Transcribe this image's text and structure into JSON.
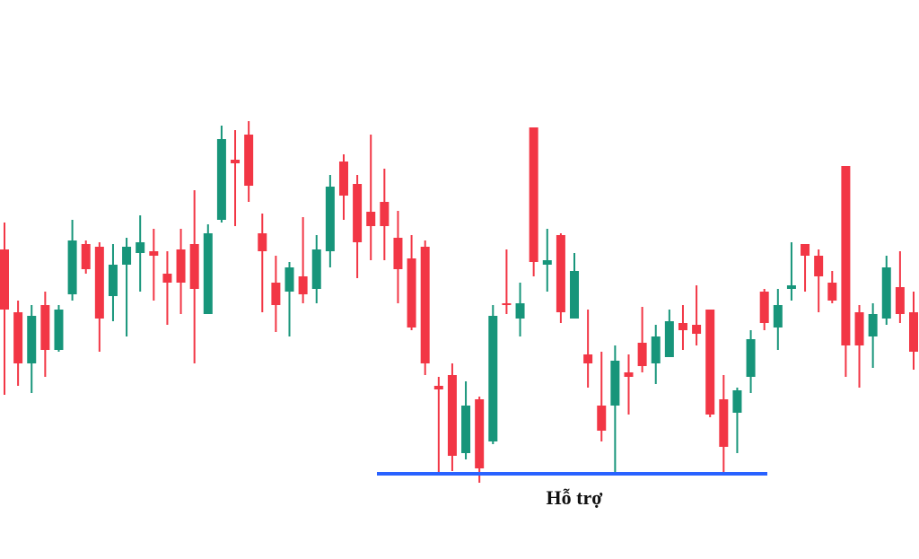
{
  "chart_data": {
    "type": "candlestick",
    "up_color": "#17957a",
    "down_color": "#f23645",
    "ylim": [
      0,
      600
    ],
    "open": [
      322,
      252,
      195,
      260,
      210,
      272,
      328,
      325,
      270,
      305,
      318,
      320,
      295,
      322,
      328,
      250,
      355,
      422,
      450,
      340,
      285,
      275,
      292,
      278,
      320,
      420,
      395,
      364,
      375,
      335,
      312,
      325,
      170,
      182,
      95,
      155,
      108,
      262,
      245,
      458,
      305,
      338,
      245,
      205,
      148,
      148,
      185,
      218,
      195,
      202,
      240,
      238,
      255,
      155,
      140,
      180,
      275,
      235,
      278,
      328,
      315,
      285,
      415,
      252,
      225,
      245,
      280,
      252
    ],
    "high": [
      352,
      265,
      260,
      275,
      260,
      355,
      332,
      330,
      328,
      335,
      360,
      345,
      320,
      345,
      388,
      350,
      460,
      455,
      465,
      362,
      315,
      308,
      358,
      338,
      405,
      428,
      405,
      450,
      412,
      365,
      338,
      332,
      180,
      195,
      175,
      158,
      260,
      322,
      285,
      458,
      345,
      340,
      318,
      255,
      208,
      215,
      205,
      258,
      238,
      255,
      260,
      282,
      255,
      182,
      168,
      232,
      278,
      278,
      330,
      328,
      322,
      298,
      415,
      260,
      262,
      315,
      320,
      275
    ],
    "low": [
      160,
      170,
      162,
      180,
      208,
      265,
      295,
      208,
      242,
      225,
      275,
      265,
      238,
      250,
      195,
      250,
      352,
      348,
      375,
      252,
      230,
      225,
      262,
      262,
      302,
      355,
      290,
      310,
      310,
      262,
      232,
      182,
      72,
      75,
      88,
      62,
      105,
      250,
      225,
      292,
      275,
      240,
      245,
      168,
      108,
      72,
      138,
      185,
      172,
      202,
      210,
      215,
      135,
      72,
      95,
      162,
      232,
      210,
      265,
      275,
      252,
      262,
      180,
      168,
      190,
      238,
      240,
      188
    ],
    "close": [
      255,
      195,
      248,
      210,
      255,
      332,
      300,
      245,
      305,
      325,
      330,
      315,
      285,
      285,
      278,
      340,
      445,
      418,
      393,
      320,
      260,
      302,
      272,
      322,
      392,
      382,
      330,
      348,
      348,
      300,
      235,
      195,
      166,
      92,
      148,
      78,
      248,
      260,
      262,
      308,
      310,
      252,
      298,
      195,
      120,
      198,
      180,
      192,
      225,
      242,
      232,
      228,
      138,
      102,
      165,
      222,
      240,
      260,
      282,
      315,
      292,
      265,
      215,
      215,
      250,
      302,
      250,
      208
    ],
    "support": {
      "value": 72,
      "label": "Hỗ trợ",
      "color": "#2962ff"
    }
  }
}
